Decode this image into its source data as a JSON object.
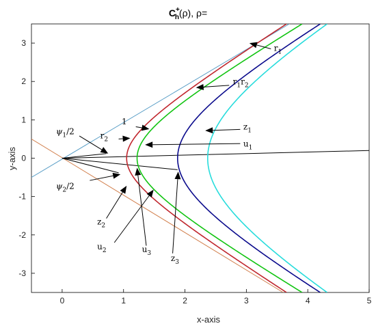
{
  "chart_data": {
    "type": "line",
    "title": "C_h^+(ρ), ρ=",
    "title_parts": {
      "main": "C",
      "sup": "+",
      "sub": "h",
      "rest": "(ρ), ρ="
    },
    "xlabel": "x-axis",
    "ylabel": "y-axis",
    "xlim": [
      -0.5,
      5
    ],
    "ylim": [
      -3.5,
      3.5
    ],
    "xticks": [
      0,
      1,
      2,
      3,
      4,
      5
    ],
    "yticks": [
      -3,
      -2,
      -1,
      0,
      1,
      2,
      3
    ],
    "grid": false,
    "series": [
      {
        "name": "1",
        "kind": "hyperbola",
        "vertex": 1.05,
        "shape_b": 1.05,
        "color": "#c0262d"
      },
      {
        "name": "r1r2",
        "kind": "hyperbola",
        "vertex": 1.22,
        "shape_b": 1.15,
        "color": "#11c411"
      },
      {
        "name": "r2",
        "kind": "hyperbola",
        "vertex": 1.88,
        "shape_b": 1.75,
        "color": "#0a0a8c"
      },
      {
        "name": "r1",
        "kind": "hyperbola",
        "vertex": 2.37,
        "shape_b": 2.3,
        "color": "#27dcdc"
      }
    ],
    "lines": [
      {
        "label": "asymptote+",
        "x": [
          -0.5,
          3.7
        ],
        "y": [
          -0.5,
          3.5
        ],
        "color": "#5b9fc7"
      },
      {
        "label": "asymptote-",
        "x": [
          -0.5,
          3.6
        ],
        "y": [
          0.5,
          -3.5
        ],
        "color": "#d2804e"
      },
      {
        "label": "ray-u1",
        "x": [
          0,
          5
        ],
        "y": [
          0,
          0.2
        ],
        "color": "#000000"
      },
      {
        "label": "ray-z3",
        "x": [
          0,
          1.88
        ],
        "y": [
          0,
          -0.3
        ],
        "color": "#000000"
      },
      {
        "label": "ray-psi1",
        "x": [
          0,
          0.72
        ],
        "y": [
          0,
          0.12
        ],
        "color": "#000000"
      },
      {
        "label": "ray-psi2",
        "x": [
          0,
          0.92
        ],
        "y": [
          0,
          -0.38
        ],
        "color": "#000000"
      }
    ],
    "annotations": [
      {
        "id": "one",
        "main": "1",
        "sub": "",
        "main2": "",
        "sub2": "",
        "text_at": [
          0.97,
          0.88
        ],
        "arrow_from": [
          1.2,
          0.82
        ],
        "arrow_to": [
          1.42,
          0.76
        ]
      },
      {
        "id": "r2",
        "main": "r",
        "sub": "2",
        "main2": "",
        "sub2": "",
        "text_at": [
          0.62,
          0.52
        ],
        "arrow_from": [
          0.92,
          0.5
        ],
        "arrow_to": [
          1.11,
          0.52
        ]
      },
      {
        "id": "psi1",
        "main": "ψ",
        "sub": "1",
        "main2": "/2",
        "sub2": "",
        "text_at": [
          -0.1,
          0.62
        ],
        "arrow_from": [
          0.28,
          0.58
        ],
        "arrow_to": [
          0.75,
          0.12
        ]
      },
      {
        "id": "z1",
        "main": "z",
        "sub": "1",
        "main2": "",
        "sub2": "",
        "text_at": [
          2.95,
          0.75
        ],
        "arrow_from": [
          2.9,
          0.75
        ],
        "arrow_to": [
          2.33,
          0.72
        ]
      },
      {
        "id": "u1",
        "main": "u",
        "sub": "1",
        "main2": "",
        "sub2": "",
        "text_at": [
          2.95,
          0.3
        ],
        "arrow_from": [
          2.9,
          0.38
        ],
        "arrow_to": [
          1.35,
          0.35
        ]
      },
      {
        "id": "r1r2",
        "main": "r",
        "sub": "1",
        "main2": "r",
        "sub2": "2",
        "text_at": [
          2.78,
          1.92
        ],
        "arrow_from": [
          2.72,
          1.9
        ],
        "arrow_to": [
          2.18,
          1.84
        ]
      },
      {
        "id": "r1",
        "main": "r",
        "sub": "1",
        "main2": "",
        "sub2": "",
        "text_at": [
          3.45,
          2.8
        ],
        "arrow_from": [
          3.4,
          2.85
        ],
        "arrow_to": [
          3.05,
          3.0
        ]
      },
      {
        "id": "psi2",
        "main": "ψ",
        "sub": "2",
        "main2": "/2",
        "sub2": "",
        "text_at": [
          -0.1,
          -0.8
        ],
        "arrow_from": [
          0.45,
          -0.58
        ],
        "arrow_to": [
          0.95,
          -0.42
        ]
      },
      {
        "id": "z2",
        "main": "z",
        "sub": "2",
        "main2": "",
        "sub2": "",
        "text_at": [
          0.57,
          -1.73
        ],
        "arrow_from": [
          0.72,
          -1.57
        ],
        "arrow_to": [
          1.05,
          -0.72
        ]
      },
      {
        "id": "u2",
        "main": "u",
        "sub": "2",
        "main2": "",
        "sub2": "",
        "text_at": [
          0.57,
          -2.38
        ],
        "arrow_from": [
          0.85,
          -2.2
        ],
        "arrow_to": [
          1.49,
          -0.82
        ]
      },
      {
        "id": "u3",
        "main": "u",
        "sub": "3",
        "main2": "",
        "sub2": "",
        "text_at": [
          1.3,
          -2.45
        ],
        "arrow_from": [
          1.37,
          -2.28
        ],
        "arrow_to": [
          1.22,
          -0.25
        ]
      },
      {
        "id": "z3",
        "main": "z",
        "sub": "3",
        "main2": "",
        "sub2": "",
        "text_at": [
          1.77,
          -2.68
        ],
        "arrow_from": [
          1.8,
          -2.48
        ],
        "arrow_to": [
          1.89,
          -0.35
        ]
      }
    ]
  }
}
